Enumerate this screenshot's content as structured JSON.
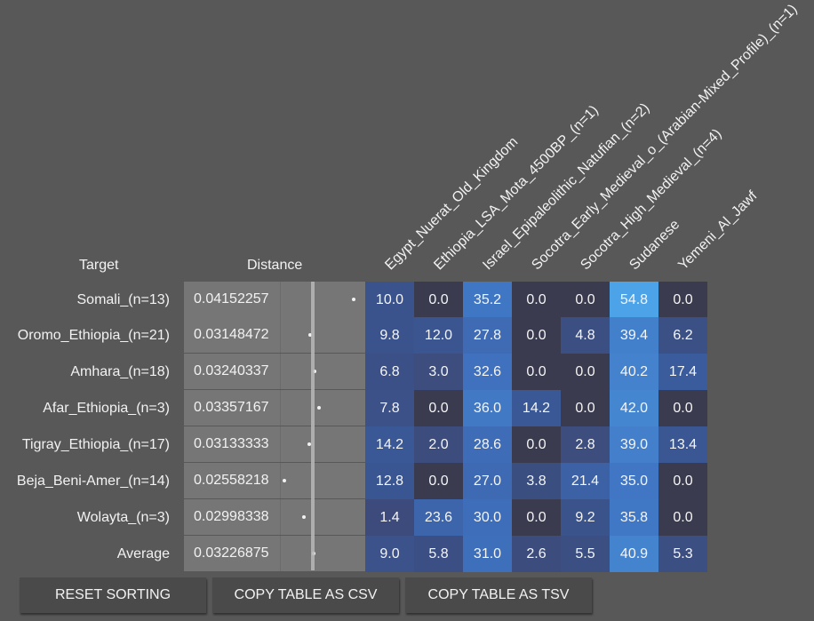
{
  "headers": {
    "target": "Target",
    "distance": "Distance"
  },
  "columns": [
    "Egypt_Nuerat_Old_Kingdom",
    "Ethiopia_LSA_Mota_4500BP_(n=1)",
    "Israel_Epipaleolithic_Natufian_(n=2)",
    "Socotra_Early_Medieval_o_(Arabian-Mixed_Profile)_(n=1)",
    "Socotra_High_Medieval_(n=4)",
    "Sudanese",
    "Yemeni_Al_Jawf"
  ],
  "rows": [
    {
      "target": "Somali_(n=13)",
      "distance": "0.04152257",
      "dist": 0.04152257,
      "values": [
        "10.0",
        "0.0",
        "35.2",
        "0.0",
        "0.0",
        "54.8",
        "0.0"
      ]
    },
    {
      "target": "Oromo_Ethiopia_(n=21)",
      "distance": "0.03148472",
      "dist": 0.03148472,
      "values": [
        "9.8",
        "12.0",
        "27.8",
        "0.0",
        "4.8",
        "39.4",
        "6.2"
      ]
    },
    {
      "target": "Amhara_(n=18)",
      "distance": "0.03240337",
      "dist": 0.03240337,
      "values": [
        "6.8",
        "3.0",
        "32.6",
        "0.0",
        "0.0",
        "40.2",
        "17.4"
      ]
    },
    {
      "target": "Afar_Ethiopia_(n=3)",
      "distance": "0.03357167",
      "dist": 0.03357167,
      "values": [
        "7.8",
        "0.0",
        "36.0",
        "14.2",
        "0.0",
        "42.0",
        "0.0"
      ]
    },
    {
      "target": "Tigray_Ethiopia_(n=17)",
      "distance": "0.03133333",
      "dist": 0.03133333,
      "values": [
        "14.2",
        "2.0",
        "28.6",
        "0.0",
        "2.8",
        "39.0",
        "13.4"
      ]
    },
    {
      "target": "Beja_Beni-Amer_(n=14)",
      "distance": "0.02558218",
      "dist": 0.02558218,
      "values": [
        "12.8",
        "0.0",
        "27.0",
        "3.8",
        "21.4",
        "35.0",
        "0.0"
      ]
    },
    {
      "target": "Wolayta_(n=3)",
      "distance": "0.02998338",
      "dist": 0.02998338,
      "values": [
        "1.4",
        "23.6",
        "30.0",
        "0.0",
        "9.2",
        "35.8",
        "0.0"
      ]
    },
    {
      "target": "Average",
      "distance": "0.03226875",
      "dist": 0.03226875,
      "values": [
        "9.0",
        "5.8",
        "31.0",
        "2.6",
        "5.5",
        "40.9",
        "5.3"
      ]
    }
  ],
  "buttons": {
    "reset": "Reset sorting",
    "copy_csv": "Copy table as CSV",
    "copy_tsv": "Copy table as TSV"
  },
  "colors": {
    "background": "#585858",
    "zero_cell": "#3b3b4f",
    "mid_cell": "#3a5794",
    "high_cell": "#4a9be0"
  }
}
